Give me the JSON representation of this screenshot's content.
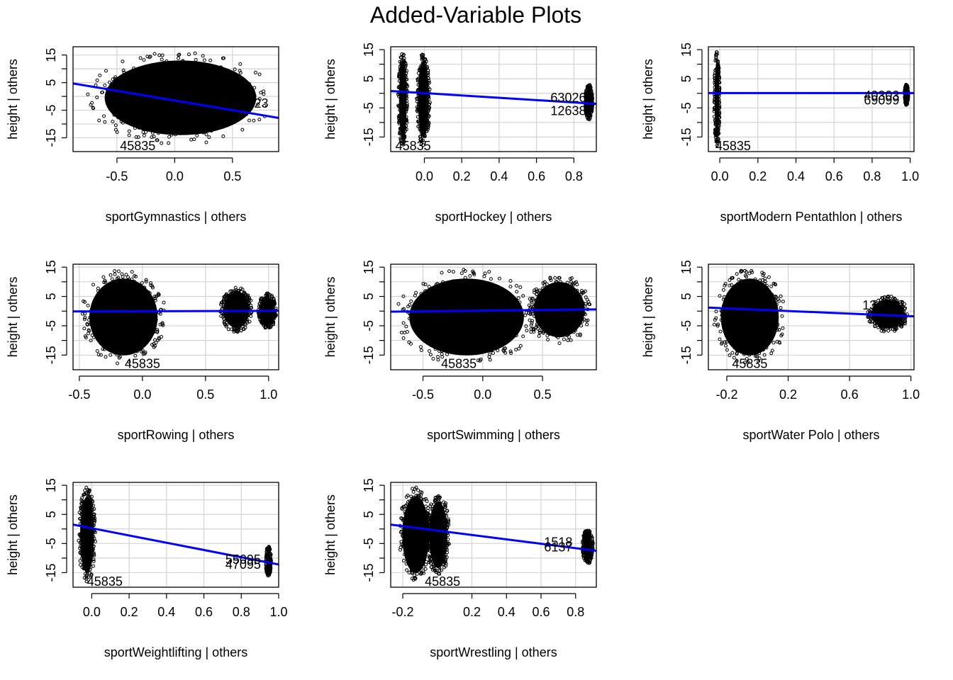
{
  "figure": {
    "title": "Added-Variable Plots"
  },
  "chart_data": [
    {
      "type": "scatter",
      "xlabel": "sportGymnastics | others",
      "ylabel": "height  | others",
      "xlim": [
        -0.88,
        0.9
      ],
      "ylim": [
        -20,
        18
      ],
      "xticks": [
        -0.5,
        0.0,
        0.5
      ],
      "xtick_labels": [
        "-0.5",
        "0.0",
        "0.5"
      ],
      "yticks": [
        -15,
        -10,
        -5,
        0,
        5,
        10,
        15
      ],
      "ytick_labels": [
        "-15",
        "",
        "-5",
        "",
        "5",
        "",
        "15"
      ],
      "clusters": [
        {
          "x_min": -0.75,
          "x_max": 0.85,
          "y_min": -17,
          "y_max": 16
        }
      ],
      "fit_line": {
        "x": [
          -0.88,
          0.9
        ],
        "y": [
          4.7,
          -7.8
        ]
      },
      "point_labels": [
        {
          "text": "45835",
          "x": -0.32,
          "y": -18
        },
        {
          "text": "23",
          "x": 0.75,
          "y": -2.6
        }
      ]
    },
    {
      "type": "scatter",
      "xlabel": "sportHockey | others",
      "ylabel": "height  | others",
      "xlim": [
        -0.18,
        0.92
      ],
      "ylim": [
        -20,
        16
      ],
      "xticks": [
        0.0,
        0.2,
        0.4,
        0.6,
        0.8
      ],
      "xtick_labels": [
        "0.0",
        "0.2",
        "0.4",
        "0.6",
        "0.8"
      ],
      "yticks": [
        -15,
        -10,
        -5,
        0,
        5,
        10,
        15
      ],
      "ytick_labels": [
        "-15",
        "",
        "-5",
        "",
        "5",
        "",
        "15"
      ],
      "clusters": [
        {
          "x_min": -0.14,
          "x_max": -0.09,
          "y_min": -18,
          "y_max": 14
        },
        {
          "x_min": -0.04,
          "x_max": 0.03,
          "y_min": -18,
          "y_max": 14
        },
        {
          "x_min": 0.86,
          "x_max": 0.9,
          "y_min": -9,
          "y_max": 3
        }
      ],
      "fit_line": {
        "x": [
          -0.18,
          0.92
        ],
        "y": [
          0.8,
          -3.6
        ]
      },
      "point_labels": [
        {
          "text": "45835",
          "x": -0.06,
          "y": -18
        },
        {
          "text": "63026",
          "x": 0.77,
          "y": -1.5
        },
        {
          "text": "12638",
          "x": 0.77,
          "y": -6
        }
      ]
    },
    {
      "type": "scatter",
      "xlabel": "sportModern Pentathlon | others",
      "ylabel": "height  | others",
      "xlim": [
        -0.06,
        1.02
      ],
      "ylim": [
        -20,
        16
      ],
      "xticks": [
        0.0,
        0.2,
        0.4,
        0.6,
        0.8,
        1.0
      ],
      "xtick_labels": [
        "0.0",
        "0.2",
        "0.4",
        "0.6",
        "0.8",
        "1.0"
      ],
      "yticks": [
        -15,
        -10,
        -5,
        0,
        5,
        10,
        15
      ],
      "ytick_labels": [
        "-15",
        "",
        "-5",
        "",
        "5",
        "",
        "15"
      ],
      "clusters": [
        {
          "x_min": -0.03,
          "x_max": 0.0,
          "y_min": -18,
          "y_max": 14
        },
        {
          "x_min": 0.97,
          "x_max": 0.99,
          "y_min": -4,
          "y_max": 3
        }
      ],
      "fit_line": {
        "x": [
          -0.06,
          1.02
        ],
        "y": [
          0.1,
          0.1
        ]
      },
      "point_labels": [
        {
          "text": "45835",
          "x": 0.07,
          "y": -18
        },
        {
          "text": "40303",
          "x": 0.85,
          "y": -0.8
        },
        {
          "text": "69099",
          "x": 0.85,
          "y": -2.4
        }
      ]
    },
    {
      "type": "scatter",
      "xlabel": "sportRowing | others",
      "ylabel": "height  | others",
      "xlim": [
        -0.55,
        1.08
      ],
      "ylim": [
        -20,
        16
      ],
      "xticks": [
        -0.5,
        0.0,
        0.5,
        1.0
      ],
      "xtick_labels": [
        "-0.5",
        "0.0",
        "0.5",
        "1.0"
      ],
      "yticks": [
        -15,
        -10,
        -5,
        0,
        5,
        10,
        15
      ],
      "ytick_labels": [
        "-15",
        "",
        "-5",
        "",
        "5",
        "",
        "15"
      ],
      "clusters": [
        {
          "x_min": -0.48,
          "x_max": 0.18,
          "y_min": -18,
          "y_max": 14
        },
        {
          "x_min": 0.62,
          "x_max": 0.87,
          "y_min": -7,
          "y_max": 8
        },
        {
          "x_min": 0.92,
          "x_max": 1.06,
          "y_min": -6,
          "y_max": 6
        }
      ],
      "fit_line": {
        "x": [
          -0.55,
          1.08
        ],
        "y": [
          -0.1,
          0.1
        ]
      },
      "point_labels": [
        {
          "text": "45835",
          "x": 0.0,
          "y": -18
        }
      ]
    },
    {
      "type": "scatter",
      "xlabel": "sportSwimming | others",
      "ylabel": "height  | others",
      "xlim": [
        -0.77,
        0.95
      ],
      "ylim": [
        -20,
        16
      ],
      "xticks": [
        -0.5,
        0.0,
        0.5
      ],
      "xtick_labels": [
        "-0.5",
        "0.0",
        "0.5"
      ],
      "yticks": [
        -15,
        -10,
        -5,
        0,
        5,
        10,
        15
      ],
      "ytick_labels": [
        "-15",
        "",
        "-5",
        "",
        "5",
        "",
        "15"
      ],
      "clusters": [
        {
          "x_min": -0.72,
          "x_max": 0.45,
          "y_min": -18,
          "y_max": 14
        },
        {
          "x_min": 0.38,
          "x_max": 0.9,
          "y_min": -11,
          "y_max": 12
        }
      ],
      "fit_line": {
        "x": [
          -0.77,
          0.95
        ],
        "y": [
          -0.2,
          0.6
        ]
      },
      "point_labels": [
        {
          "text": "45835",
          "x": -0.2,
          "y": -18
        }
      ]
    },
    {
      "type": "scatter",
      "xlabel": "sportWater Polo | others",
      "ylabel": "height  | others",
      "xlim": [
        -0.32,
        1.02
      ],
      "ylim": [
        -20,
        16
      ],
      "xticks": [
        -0.2,
        0.2,
        0.6,
        1.0
      ],
      "xtick_labels": [
        "-0.2",
        "0.2",
        "0.6",
        "1.0"
      ],
      "yticks": [
        -15,
        -10,
        -5,
        0,
        5,
        10,
        15
      ],
      "ytick_labels": [
        "-15",
        "",
        "-5",
        "",
        "5",
        "",
        "15"
      ],
      "clusters": [
        {
          "x_min": -0.28,
          "x_max": 0.18,
          "y_min": -18,
          "y_max": 14
        },
        {
          "x_min": 0.72,
          "x_max": 0.98,
          "y_min": -7,
          "y_max": 5
        }
      ],
      "fit_line": {
        "x": [
          -0.32,
          1.02
        ],
        "y": [
          1.2,
          -1.8
        ]
      },
      "point_labels": [
        {
          "text": "45835",
          "x": -0.05,
          "y": -18
        },
        {
          "text": "13",
          "x": 0.73,
          "y": 2
        }
      ]
    },
    {
      "type": "scatter",
      "xlabel": "sportWeightlifting | others",
      "ylabel": "height  | others",
      "xlim": [
        -0.1,
        1.0
      ],
      "ylim": [
        -20,
        16
      ],
      "xticks": [
        0.0,
        0.2,
        0.4,
        0.6,
        0.8,
        1.0
      ],
      "xtick_labels": [
        "0.0",
        "0.2",
        "0.4",
        "0.6",
        "0.8",
        "1.0"
      ],
      "yticks": [
        -15,
        -10,
        -5,
        0,
        5,
        10,
        15
      ],
      "ytick_labels": [
        "-15",
        "",
        "-5",
        "",
        "5",
        "",
        "15"
      ],
      "clusters": [
        {
          "x_min": -0.07,
          "x_max": 0.02,
          "y_min": -18,
          "y_max": 14
        },
        {
          "x_min": 0.93,
          "x_max": 0.96,
          "y_min": -16,
          "y_max": -6
        }
      ],
      "fit_line": {
        "x": [
          -0.1,
          1.0
        ],
        "y": [
          1.5,
          -12.2
        ]
      },
      "point_labels": [
        {
          "text": "45835",
          "x": 0.07,
          "y": -18
        },
        {
          "text": "55095",
          "x": 0.81,
          "y": -10.5
        },
        {
          "text": "47095",
          "x": 0.81,
          "y": -12.2
        }
      ]
    },
    {
      "type": "scatter",
      "xlabel": "sportWrestling | others",
      "ylabel": "height  | others",
      "xlim": [
        -0.27,
        0.92
      ],
      "ylim": [
        -20,
        16
      ],
      "xticks": [
        -0.2,
        0.2,
        0.4,
        0.6,
        0.8
      ],
      "xtick_labels": [
        "-0.2",
        "0.2",
        "0.4",
        "0.6",
        "0.8"
      ],
      "yticks": [
        -15,
        -10,
        -5,
        0,
        5,
        10,
        15
      ],
      "ytick_labels": [
        "-15",
        "",
        "-5",
        "",
        "5",
        "",
        "15"
      ],
      "clusters": [
        {
          "x_min": -0.22,
          "x_max": -0.03,
          "y_min": -18,
          "y_max": 14
        },
        {
          "x_min": -0.06,
          "x_max": 0.07,
          "y_min": -16,
          "y_max": 12
        },
        {
          "x_min": 0.84,
          "x_max": 0.9,
          "y_min": -12,
          "y_max": 0
        }
      ],
      "fit_line": {
        "x": [
          -0.27,
          0.92
        ],
        "y": [
          1.5,
          -7.5
        ]
      },
      "point_labels": [
        {
          "text": "45835",
          "x": 0.03,
          "y": -18
        },
        {
          "text": "1518",
          "x": 0.7,
          "y": -4.5
        },
        {
          "text": "6137",
          "x": 0.7,
          "y": -6.3
        }
      ]
    }
  ]
}
